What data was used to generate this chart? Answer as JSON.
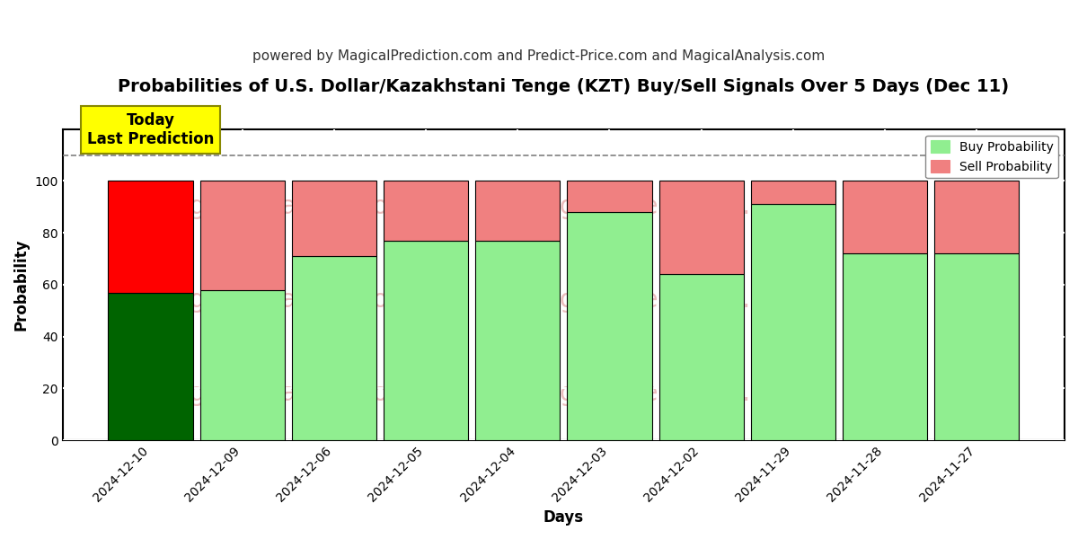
{
  "title": "Probabilities of U.S. Dollar/Kazakhstani Tenge (KZT) Buy/Sell Signals Over 5 Days (Dec 11)",
  "subtitle": "powered by MagicalPrediction.com and Predict-Price.com and MagicalAnalysis.com",
  "xlabel": "Days",
  "ylabel": "Probability",
  "categories": [
    "2024-12-10",
    "2024-12-09",
    "2024-12-06",
    "2024-12-05",
    "2024-12-04",
    "2024-12-03",
    "2024-12-02",
    "2024-11-29",
    "2024-11-28",
    "2024-11-27"
  ],
  "buy_values": [
    57,
    58,
    71,
    77,
    77,
    88,
    64,
    91,
    72,
    72
  ],
  "sell_values": [
    43,
    42,
    29,
    23,
    23,
    12,
    36,
    9,
    28,
    28
  ],
  "buy_colors": [
    "#006400",
    "#90EE90",
    "#90EE90",
    "#90EE90",
    "#90EE90",
    "#90EE90",
    "#90EE90",
    "#90EE90",
    "#90EE90",
    "#90EE90"
  ],
  "sell_colors": [
    "#FF0000",
    "#F08080",
    "#F08080",
    "#F08080",
    "#F08080",
    "#F08080",
    "#F08080",
    "#F08080",
    "#F08080",
    "#F08080"
  ],
  "legend_buy_color": "#90EE90",
  "legend_sell_color": "#F08080",
  "ylim": [
    0,
    120
  ],
  "yticks": [
    0,
    20,
    40,
    60,
    80,
    100
  ],
  "dashed_line_y": 110,
  "annotation_text": "Today\nLast Prediction",
  "annotation_bg": "#FFFF00",
  "bar_edge_color": "#000000",
  "grid_color": "#FFFFFF",
  "plot_bg_color": "#FFFFFF",
  "fig_bg_color": "#FFFFFF",
  "title_fontsize": 14,
  "subtitle_fontsize": 11,
  "bar_width": 0.92
}
